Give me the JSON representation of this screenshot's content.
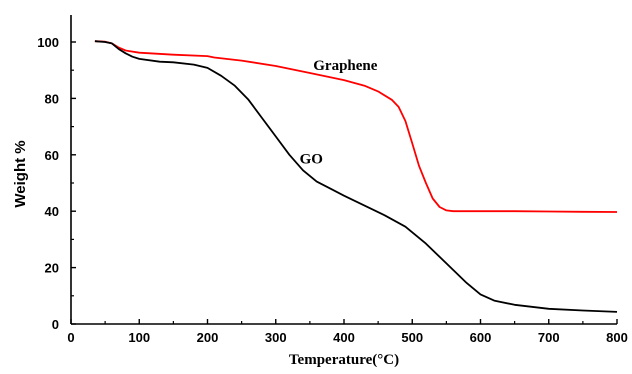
{
  "chart_data": {
    "type": "line",
    "title": "",
    "xlabel": "Temperature(°C)",
    "ylabel": "Weight %",
    "xlim": [
      0,
      800
    ],
    "ylim": [
      0,
      110
    ],
    "xticks": [
      0,
      100,
      200,
      300,
      400,
      500,
      600,
      700,
      800
    ],
    "yticks": [
      0,
      20,
      40,
      60,
      80,
      100
    ],
    "grid": false,
    "series": [
      {
        "name": "Graphene",
        "color": "#ff0000",
        "x": [
          35,
          50,
          60,
          70,
          80,
          100,
          150,
          200,
          210,
          250,
          300,
          350,
          400,
          430,
          450,
          470,
          480,
          490,
          500,
          510,
          520,
          530,
          540,
          550,
          560,
          580,
          600,
          650,
          700,
          750,
          800
        ],
        "y": [
          100.3,
          100.1,
          99.5,
          98.0,
          97.0,
          96.2,
          95.5,
          95.0,
          94.5,
          93.4,
          91.5,
          89.0,
          86.5,
          84.5,
          82.5,
          79.5,
          77.0,
          72.0,
          64.0,
          56.0,
          50.0,
          44.5,
          41.5,
          40.3,
          40.0,
          40.0,
          40.0,
          40.0,
          39.9,
          39.8,
          39.7
        ]
      },
      {
        "name": "GO",
        "color": "#000000",
        "x": [
          35,
          50,
          60,
          70,
          80,
          90,
          100,
          130,
          150,
          180,
          200,
          220,
          240,
          260,
          280,
          300,
          320,
          340,
          360,
          380,
          400,
          430,
          460,
          490,
          520,
          550,
          580,
          600,
          620,
          650,
          700,
          750,
          800
        ],
        "y": [
          100.3,
          100.0,
          99.5,
          97.5,
          96.0,
          94.8,
          94.0,
          93.0,
          92.8,
          92.0,
          90.8,
          88.0,
          84.5,
          79.5,
          73.0,
          66.5,
          60.0,
          54.5,
          50.5,
          48.0,
          45.5,
          42.0,
          38.5,
          34.5,
          28.5,
          21.5,
          14.5,
          10.5,
          8.3,
          6.8,
          5.4,
          4.8,
          4.3
        ]
      }
    ],
    "annotations": [
      {
        "text": "Graphene",
        "x": 402,
        "y": 90
      },
      {
        "text": "GO",
        "x": 352,
        "y": 57
      }
    ]
  }
}
